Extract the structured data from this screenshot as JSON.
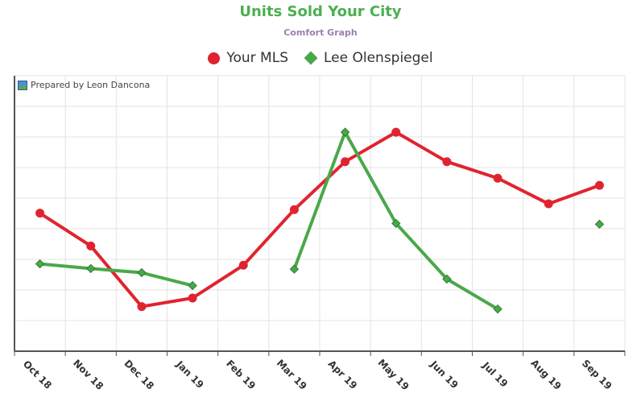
{
  "chart_data": {
    "type": "line",
    "title": "Units Sold Your City",
    "subtitle": "Comfort Graph",
    "xlabel": "",
    "ylabel": "",
    "categories": [
      "Oct 18",
      "Nov 18",
      "Dec 18",
      "Jan 19",
      "Feb 19",
      "Mar 19",
      "Apr 19",
      "May 19",
      "Jun 19",
      "Jul 19",
      "Aug 19",
      "Sep 19"
    ],
    "ylim": [
      0,
      100
    ],
    "grid": true,
    "legend_position": "top-center",
    "y_tick_labels_visible": false,
    "series": [
      {
        "name": "Your MLS",
        "color": "#e0242f",
        "marker": "circle",
        "values": [
          50.1,
          38.2,
          16.2,
          19.3,
          31.2,
          51.4,
          68.8,
          79.5,
          68.8,
          62.8,
          53.5,
          60.2
        ]
      },
      {
        "name": "Lee Olenspiegel",
        "color": "#4aa84a",
        "marker": "diamond",
        "values": [
          31.7,
          30.0,
          28.5,
          23.8,
          null,
          29.8,
          79.5,
          46.4,
          26.2,
          15.3,
          null,
          46.1
        ]
      }
    ]
  },
  "watermark": {
    "text": "Prepared by Leon Dancona",
    "icon": "chart-logo-icon"
  }
}
